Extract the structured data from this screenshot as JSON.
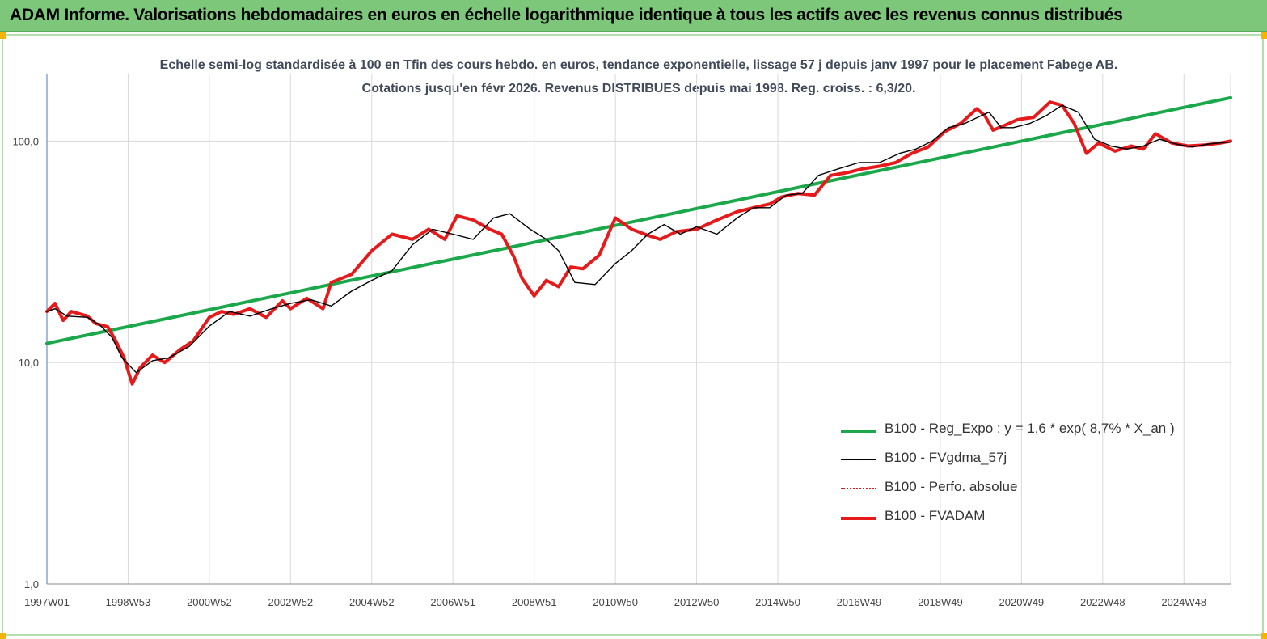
{
  "banner": {
    "title": "ADAM Informe. Valorisations hebdomadaires en euros en échelle logarithmique identique à tous les actifs avec les revenus connus distribués"
  },
  "chart_data": {
    "type": "line",
    "title": "Echelle semi-log standardisée à 100 en Tfin des cours hebdo. en euros, tendance exponentielle, lissage 57 j depuis janv 1997 pour le placement Fabege AB. Cotations jusqu'en févr 2026. Revenus DISTRIBUES depuis mai 1998. Reg. croiss. : 6,3/20.",
    "y_scale": "log",
    "ylim": [
      1,
      200
    ],
    "xlim": [
      1997.0,
      2026.15
    ],
    "y_ticks": [
      {
        "value": 1,
        "label": "1,0"
      },
      {
        "value": 10,
        "label": "10,0"
      },
      {
        "value": 100,
        "label": "100,0"
      }
    ],
    "x_ticks": [
      {
        "value": 1997.0,
        "label": "1997W01"
      },
      {
        "value": 1999.0,
        "label": "1998W53"
      },
      {
        "value": 2001.0,
        "label": "2000W52"
      },
      {
        "value": 2003.0,
        "label": "2002W52"
      },
      {
        "value": 2005.0,
        "label": "2004W52"
      },
      {
        "value": 2007.0,
        "label": "2006W51"
      },
      {
        "value": 2009.0,
        "label": "2008W51"
      },
      {
        "value": 2011.0,
        "label": "2010W50"
      },
      {
        "value": 2013.0,
        "label": "2012W50"
      },
      {
        "value": 2015.0,
        "label": "2014W50"
      },
      {
        "value": 2017.0,
        "label": "2016W49"
      },
      {
        "value": 2019.0,
        "label": "2018W49"
      },
      {
        "value": 2021.0,
        "label": "2020W49"
      },
      {
        "value": 2023.0,
        "label": "2022W48"
      },
      {
        "value": 2025.0,
        "label": "2024W48"
      }
    ],
    "grid": "vertical",
    "legend_position": "bottom-right",
    "series": [
      {
        "name": "B100 - Reg_Expo : y = 1,6 *  exp( 8,7% *  X_an )",
        "color": "#1aa84a",
        "style": "thick",
        "x": [
          1997.0,
          2026.15
        ],
        "values": [
          12.2,
          157
        ]
      },
      {
        "name": "B100 - FVgdma_57j",
        "color": "#000000",
        "style": "thin",
        "x": [
          1997.0,
          1997.2,
          1997.5,
          1998.0,
          1998.3,
          1998.6,
          1998.85,
          1999.2,
          1999.6,
          2000.0,
          2000.5,
          2001.0,
          2001.5,
          2002.0,
          2002.5,
          2003.0,
          2003.5,
          2004.0,
          2004.5,
          2005.0,
          2005.5,
          2006.0,
          2006.5,
          2007.0,
          2007.5,
          2008.0,
          2008.4,
          2008.9,
          2009.3,
          2009.6,
          2010.0,
          2010.5,
          2011.0,
          2011.4,
          2011.8,
          2012.2,
          2012.6,
          2013.0,
          2013.5,
          2014.0,
          2014.4,
          2014.8,
          2015.2,
          2015.6,
          2016.0,
          2016.5,
          2017.0,
          2017.5,
          2018.0,
          2018.4,
          2018.8,
          2019.2,
          2019.6,
          2020.0,
          2020.2,
          2020.5,
          2020.8,
          2021.2,
          2021.6,
          2022.0,
          2022.4,
          2022.8,
          2023.2,
          2023.6,
          2024.0,
          2024.4,
          2024.8,
          2025.2,
          2025.6,
          2026.15
        ],
        "values": [
          17,
          17.5,
          16.2,
          16.0,
          14.8,
          13.0,
          10.5,
          9.0,
          10.2,
          10.5,
          11.8,
          14.6,
          17.0,
          16.2,
          17.4,
          18.5,
          19.2,
          18.0,
          21.0,
          23.5,
          26.0,
          34.0,
          40.0,
          38.0,
          36.0,
          45.0,
          47.0,
          40.0,
          36.0,
          32.0,
          23.0,
          22.5,
          28.0,
          32.0,
          38.0,
          42.0,
          38.0,
          41.0,
          38.0,
          45.0,
          50.0,
          50.0,
          57.0,
          58.0,
          70.0,
          75.0,
          80.0,
          80.0,
          88.0,
          92.0,
          100.0,
          115.0,
          120.0,
          130.0,
          135.0,
          115.0,
          115.0,
          120.0,
          130.0,
          145.0,
          135.0,
          102.0,
          95.0,
          92.0,
          95.0,
          102.0,
          97.0,
          94.0,
          97.0,
          99.0
        ]
      },
      {
        "name": "B100 - Perfo. absolue",
        "color": "#e01a1a",
        "style": "dotted",
        "x": [],
        "values": []
      },
      {
        "name": "B100 - FVADAM",
        "color": "#e61a1a",
        "style": "thick",
        "x": [
          1997.0,
          1997.2,
          1997.4,
          1997.6,
          1998.0,
          1998.2,
          1998.5,
          1998.7,
          1998.9,
          1999.1,
          1999.3,
          1999.6,
          1999.9,
          2000.3,
          2000.6,
          2001.0,
          2001.3,
          2001.6,
          2002.0,
          2002.4,
          2002.8,
          2003.0,
          2003.4,
          2003.8,
          2004.0,
          2004.5,
          2005.0,
          2005.5,
          2006.0,
          2006.4,
          2006.8,
          2007.1,
          2007.5,
          2007.9,
          2008.2,
          2008.5,
          2008.7,
          2009.0,
          2009.3,
          2009.6,
          2009.9,
          2010.2,
          2010.6,
          2011.0,
          2011.4,
          2011.8,
          2012.1,
          2012.5,
          2013.0,
          2013.5,
          2014.0,
          2014.4,
          2014.8,
          2015.1,
          2015.5,
          2015.9,
          2016.3,
          2016.7,
          2017.1,
          2017.5,
          2017.9,
          2018.3,
          2018.7,
          2019.1,
          2019.5,
          2019.9,
          2020.1,
          2020.3,
          2020.6,
          2020.9,
          2021.3,
          2021.7,
          2022.0,
          2022.3,
          2022.6,
          2022.9,
          2023.3,
          2023.7,
          2024.0,
          2024.3,
          2024.7,
          2025.1,
          2025.5,
          2025.9,
          2026.15
        ],
        "values": [
          17,
          18.5,
          15.5,
          17.0,
          16.2,
          15.0,
          14.5,
          12.5,
          10.5,
          8.0,
          9.5,
          10.8,
          10.0,
          11.5,
          12.5,
          16.0,
          17.0,
          16.5,
          17.5,
          16.0,
          19.0,
          17.5,
          19.5,
          17.5,
          23.0,
          25.0,
          32.0,
          38.0,
          36.0,
          40.0,
          36.0,
          46.0,
          44.0,
          40.0,
          38.0,
          30.0,
          24.0,
          20.0,
          23.5,
          22.0,
          27.0,
          26.5,
          30.5,
          45.0,
          40.0,
          37.5,
          36.0,
          39.0,
          40.0,
          44.0,
          48.0,
          50.0,
          52.0,
          56.0,
          58.0,
          57.0,
          70.0,
          72.0,
          75.0,
          77.0,
          80.0,
          88.0,
          94.0,
          110.0,
          120.0,
          140.0,
          130.0,
          112.0,
          118.0,
          125.0,
          128.0,
          150.0,
          145.0,
          120.0,
          88.0,
          98.0,
          90.0,
          95.0,
          92.0,
          108.0,
          98.0,
          95.0,
          96.0,
          98.0,
          100.0
        ]
      }
    ]
  }
}
